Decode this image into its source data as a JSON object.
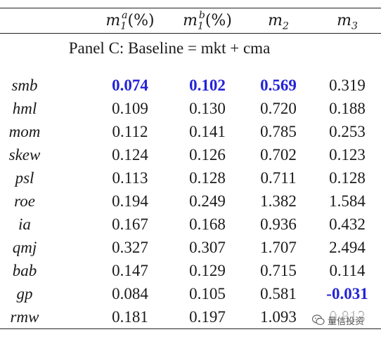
{
  "header": {
    "m1a": {
      "base": "m",
      "sub": "1",
      "sup": "a",
      "unit": "(%)"
    },
    "m1b": {
      "base": "m",
      "sub": "1",
      "sup": "b",
      "unit": "(%)"
    },
    "m2": {
      "base": "m",
      "sub": "2"
    },
    "m3": {
      "base": "m",
      "sub": "3"
    }
  },
  "panel_title": "Panel C: Baseline = mkt + cma",
  "highlight_color": "#2323d9",
  "rows": [
    {
      "label": "smb",
      "v": [
        "0.074",
        "0.102",
        "0.569",
        "0.319"
      ],
      "bold": [
        true,
        true,
        true,
        false
      ]
    },
    {
      "label": "hml",
      "v": [
        "0.109",
        "0.130",
        "0.720",
        "0.188"
      ],
      "bold": [
        false,
        false,
        false,
        false
      ]
    },
    {
      "label": "mom",
      "v": [
        "0.112",
        "0.141",
        "0.785",
        "0.253"
      ],
      "bold": [
        false,
        false,
        false,
        false
      ]
    },
    {
      "label": "skew",
      "v": [
        "0.124",
        "0.126",
        "0.702",
        "0.123"
      ],
      "bold": [
        false,
        false,
        false,
        false
      ]
    },
    {
      "label": "psl",
      "v": [
        "0.113",
        "0.128",
        "0.711",
        "0.128"
      ],
      "bold": [
        false,
        false,
        false,
        false
      ]
    },
    {
      "label": "roe",
      "v": [
        "0.194",
        "0.249",
        "1.382",
        "1.584"
      ],
      "bold": [
        false,
        false,
        false,
        false
      ]
    },
    {
      "label": "ia",
      "v": [
        "0.167",
        "0.168",
        "0.936",
        "0.432"
      ],
      "bold": [
        false,
        false,
        false,
        false
      ]
    },
    {
      "label": "qmj",
      "v": [
        "0.327",
        "0.307",
        "1.707",
        "2.494"
      ],
      "bold": [
        false,
        false,
        false,
        false
      ]
    },
    {
      "label": "bab",
      "v": [
        "0.147",
        "0.129",
        "0.715",
        "0.114"
      ],
      "bold": [
        false,
        false,
        false,
        false
      ]
    },
    {
      "label": "gp",
      "v": [
        "0.084",
        "0.105",
        "0.581",
        "-0.031"
      ],
      "bold": [
        false,
        false,
        false,
        true
      ]
    },
    {
      "label": "rmw",
      "v": [
        "0.181",
        "0.197",
        "1.093",
        "0.813"
      ],
      "bold": [
        false,
        false,
        false,
        false
      ]
    }
  ],
  "watermark": {
    "text": "量信投资",
    "icon": "wechat-icon"
  }
}
